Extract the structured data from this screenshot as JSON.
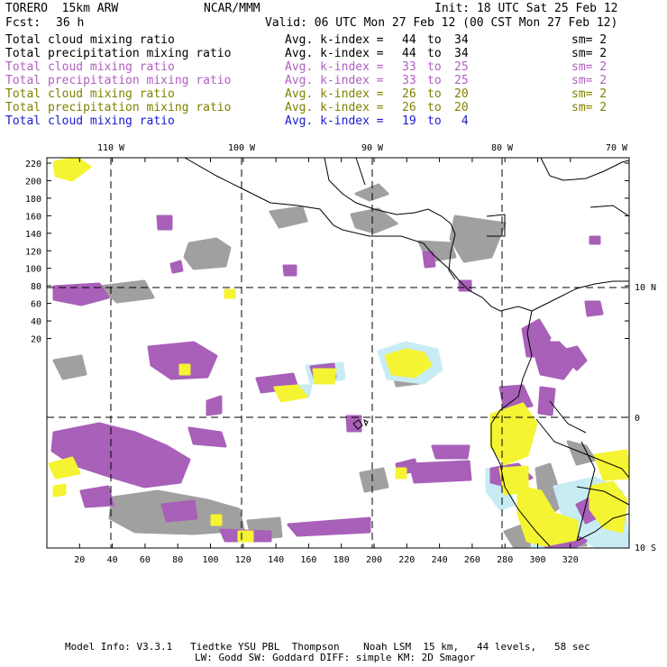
{
  "header": {
    "model": "TORERO  15km ARW",
    "org": "NCAR/MMM",
    "init": "Init: 18 UTC Sat 25 Feb 12",
    "fcst_label": "Fcst:",
    "fcst_value": "36 h",
    "valid": "Valid: 06 UTC Mon 27 Feb 12 (00 CST Mon 27 Feb 12)"
  },
  "legend": [
    {
      "field": "Total cloud mixing ratio",
      "stat": "Avg. k-index =",
      "from": "44",
      "to": "34",
      "sm": "sm= 2",
      "color": "#000000"
    },
    {
      "field": "Total precipitation mixing ratio",
      "stat": "Avg. k-index =",
      "from": "44",
      "to": "34",
      "sm": "sm= 2",
      "color": "#000000"
    },
    {
      "field": "Total cloud mixing ratio",
      "stat": "Avg. k-index =",
      "from": "33",
      "to": "25",
      "sm": "sm= 2",
      "color": "#b060c0"
    },
    {
      "field": "Total precipitation mixing ratio",
      "stat": "Avg. k-index =",
      "from": "33",
      "to": "25",
      "sm": "sm= 2",
      "color": "#b060c0"
    },
    {
      "field": "Total cloud mixing ratio",
      "stat": "Avg. k-index =",
      "from": "26",
      "to": "20",
      "sm": "sm= 2",
      "color": "#808000"
    },
    {
      "field": "Total precipitation mixing ratio",
      "stat": "Avg. k-index =",
      "from": "26",
      "to": "20",
      "sm": "sm= 2",
      "color": "#808000"
    },
    {
      "field": "Total cloud mixing ratio",
      "stat": "Avg. k-index =",
      "from": "19",
      "to": "4",
      "sm": "",
      "color": "#1a1ad0"
    }
  ],
  "to_word": "to",
  "map": {
    "lon_labels": [
      "110 W",
      "100 W",
      "90 W",
      "80 W",
      "70 W"
    ],
    "lat_labels": [
      "10 N",
      "0",
      "10 S"
    ],
    "x_ticks": [
      "20",
      "40",
      "60",
      "80",
      "100",
      "120",
      "140",
      "160",
      "180",
      "200",
      "220",
      "240",
      "260",
      "280",
      "300",
      "320"
    ],
    "y_ticks": [
      "220",
      "200",
      "180",
      "160",
      "140",
      "120",
      "100",
      "80",
      "60",
      "40",
      "20"
    ],
    "colors": {
      "gray": "#a0a0a0",
      "purple": "#a860b8",
      "yellow": "#f4f432",
      "cyan": "#c8ecf4"
    }
  },
  "footer": {
    "line1": "Model Info: V3.3.1   Tiedtke YSU PBL  Thompson    Noah LSM  15 km,   44 levels,   58 sec",
    "line2": "LW: Godd SW: Goddard DIFF: simple KM: 2D Smagor"
  }
}
